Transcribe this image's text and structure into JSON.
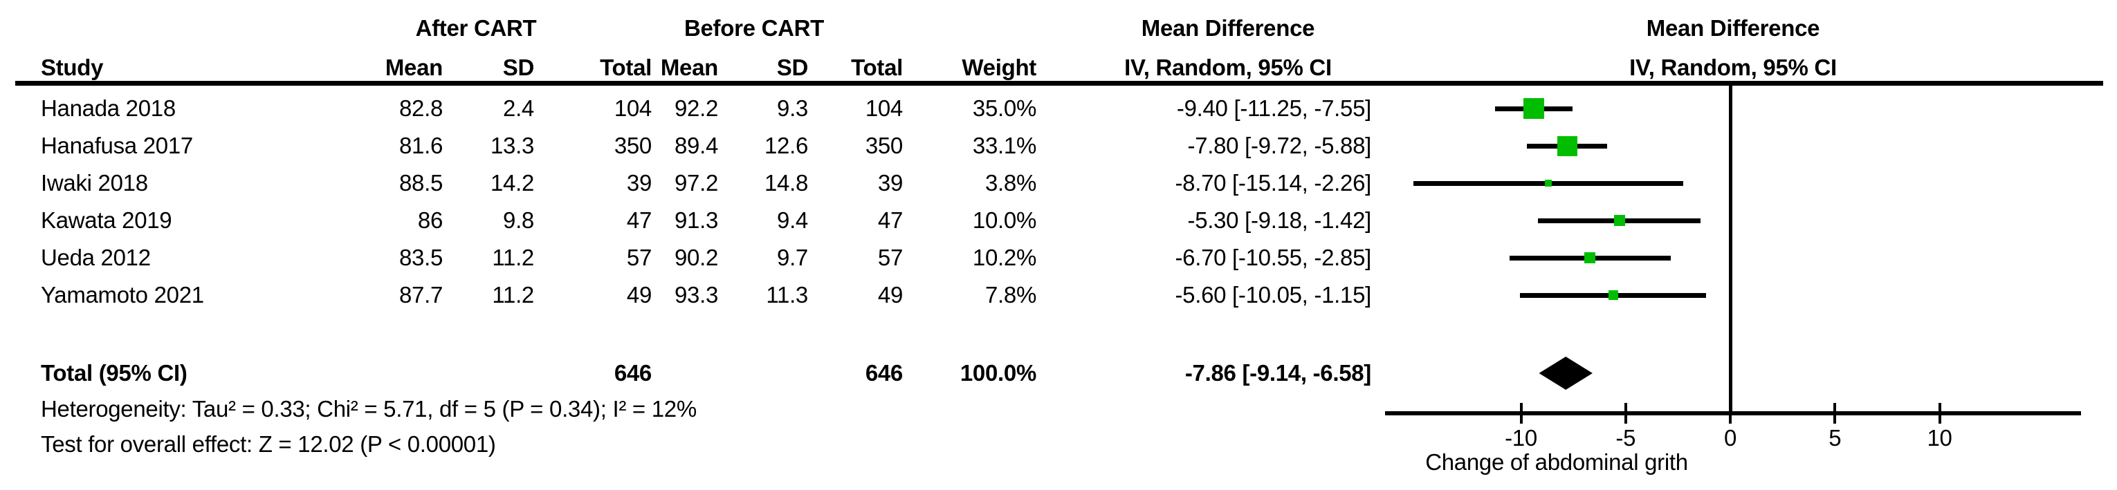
{
  "table": {
    "group_headers": {
      "after": "After CART",
      "before": "Before CART"
    },
    "md_header": {
      "line1": "Mean Difference",
      "line2": "IV, Random, 95% CI"
    },
    "columns": {
      "study": "Study",
      "mean": "Mean",
      "sd": "SD",
      "total": "Total",
      "weight": "Weight"
    },
    "studies": [
      {
        "name": "Hanada 2018",
        "mean_after": "82.8",
        "sd_after": "2.4",
        "total_after": "104",
        "mean_before": "92.2",
        "sd_before": "9.3",
        "total_before": "104",
        "weight": "35.0%",
        "ci_text": "-9.40 [-11.25, -7.55]"
      },
      {
        "name": "Hanafusa 2017",
        "mean_after": "81.6",
        "sd_after": "13.3",
        "total_after": "350",
        "mean_before": "89.4",
        "sd_before": "12.6",
        "total_before": "350",
        "weight": "33.1%",
        "ci_text": "-7.80 [-9.72, -5.88]"
      },
      {
        "name": "Iwaki 2018",
        "mean_after": "88.5",
        "sd_after": "14.2",
        "total_after": "39",
        "mean_before": "97.2",
        "sd_before": "14.8",
        "total_before": "39",
        "weight": "3.8%",
        "ci_text": "-8.70 [-15.14, -2.26]"
      },
      {
        "name": "Kawata 2019",
        "mean_after": "86",
        "sd_after": "9.8",
        "total_after": "47",
        "mean_before": "91.3",
        "sd_before": "9.4",
        "total_before": "47",
        "weight": "10.0%",
        "ci_text": "-5.30 [-9.18, -1.42]"
      },
      {
        "name": "Ueda 2012",
        "mean_after": "83.5",
        "sd_after": "11.2",
        "total_after": "57",
        "mean_before": "90.2",
        "sd_before": "9.7",
        "total_before": "57",
        "weight": "10.2%",
        "ci_text": "-6.70 [-10.55, -2.85]"
      },
      {
        "name": "Yamamoto 2021",
        "mean_after": "87.7",
        "sd_after": "11.2",
        "total_after": "49",
        "mean_before": "93.3",
        "sd_before": "11.3",
        "total_before": "49",
        "weight": "7.8%",
        "ci_text": "-5.60 [-10.05, -1.15]"
      }
    ],
    "total_row": {
      "label": "Total (95% CI)",
      "total_after": "646",
      "total_before": "646",
      "weight": "100.0%",
      "ci_text": "-7.86 [-9.14, -6.58]"
    },
    "heterogeneity": "Heterogeneity: Tau² = 0.33; Chi² = 5.71, df = 5 (P = 0.34); I² = 12%",
    "overall_effect": "Test for overall effect: Z = 12.02 (P < 0.00001)"
  },
  "chart_data": {
    "type": "forest",
    "effect_measure": "Mean Difference, IV, Random, 95% CI",
    "xlabel": "Change of abdominal grith",
    "axis_range": [
      -16.5,
      16.75
    ],
    "axis_ticks": [
      -10,
      -5,
      0,
      5,
      10
    ],
    "grid": false,
    "marker_color": "#00bd00",
    "line_color": "#000000",
    "studies": [
      {
        "name": "Hanada 2018",
        "md": -9.4,
        "ci_low": -11.25,
        "ci_high": -7.55,
        "weight_pct": 35.0
      },
      {
        "name": "Hanafusa 2017",
        "md": -7.8,
        "ci_low": -9.72,
        "ci_high": -5.88,
        "weight_pct": 33.1
      },
      {
        "name": "Iwaki 2018",
        "md": -8.7,
        "ci_low": -15.14,
        "ci_high": -2.26,
        "weight_pct": 3.8
      },
      {
        "name": "Kawata 2019",
        "md": -5.3,
        "ci_low": -9.18,
        "ci_high": -1.42,
        "weight_pct": 10.0
      },
      {
        "name": "Ueda 2012",
        "md": -6.7,
        "ci_low": -10.55,
        "ci_high": -2.85,
        "weight_pct": 10.2
      },
      {
        "name": "Yamamoto 2021",
        "md": -5.6,
        "ci_low": -10.05,
        "ci_high": -1.15,
        "weight_pct": 7.8
      }
    ],
    "total": {
      "md": -7.86,
      "ci_low": -9.14,
      "ci_high": -6.58
    }
  }
}
